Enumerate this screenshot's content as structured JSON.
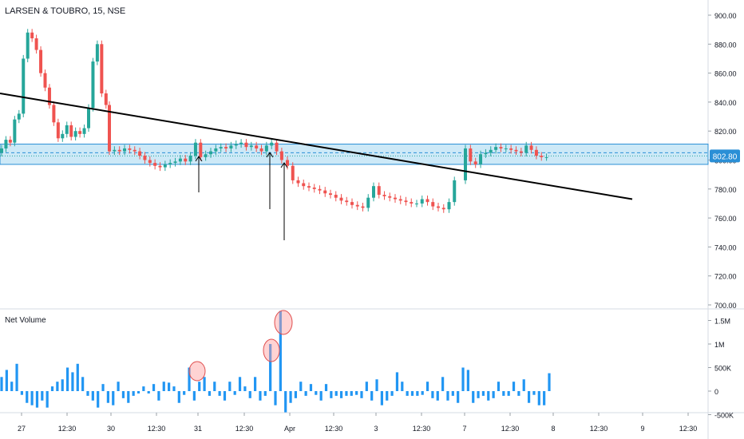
{
  "header": {
    "symbol_title": "LARSEN & TOUBRO, 15, NSE"
  },
  "price_axis": {
    "ticks": [
      "900.00",
      "880.00",
      "860.00",
      "840.00",
      "820.00",
      "800.00",
      "780.00",
      "760.00",
      "740.00",
      "720.00",
      "700.00"
    ],
    "last_price_label": "802.80"
  },
  "volume_pane": {
    "title": "Net Volume",
    "ticks": [
      "1.5M",
      "1M",
      "500K",
      "0",
      "-500K"
    ]
  },
  "time_axis": {
    "ticks": [
      "27",
      "12:30",
      "30",
      "12:30",
      "31",
      "12:30",
      "Apr",
      "12:30",
      "3",
      "12:30",
      "7",
      "12:30",
      "8",
      "12:30",
      "9",
      "12:30"
    ]
  },
  "colors": {
    "up": "#26a69a",
    "down": "#ef5350",
    "zone_fill": "#cde9f7",
    "zone_border": "#2a8fd6",
    "volume_bar": "#2196f3",
    "trendline": "#000000",
    "highlight_circle": "#ff9e9e"
  },
  "chart_data": [
    {
      "type": "candlestick",
      "title": "LARSEN & TOUBRO, 15, NSE",
      "ylim": [
        700,
        910
      ],
      "last_price": 802.8,
      "support_zone": [
        797,
        811
      ],
      "zone_midline": 805,
      "trendline": {
        "from": {
          "x": "Mar 27 start",
          "y": 846
        },
        "to": {
          "x": "Apr 8",
          "y": 773
        }
      },
      "series": [
        {
          "x": "Mar 27",
          "values": [
            808,
            814,
            812,
            828,
            832,
            870,
            888,
            884,
            876,
            860,
            850,
            838,
            826,
            815,
            818,
            824,
            816,
            820,
            818,
            822,
            836,
            868,
            880,
            846,
            838
          ]
        },
        {
          "x": "Mar 30",
          "values": [
            806,
            807,
            806,
            808,
            807,
            806,
            803,
            800,
            798,
            796,
            795,
            797,
            798,
            799,
            801,
            799,
            803,
            812,
            802,
            804,
            806,
            808,
            809,
            808,
            810,
            811,
            812,
            809,
            810,
            808,
            806,
            810,
            812,
            806,
            800
          ]
        },
        {
          "x": "Apr 1",
          "values": [
            796,
            786,
            784,
            782,
            781,
            780,
            779,
            777,
            776,
            774,
            772,
            771,
            769,
            768,
            767,
            774,
            782,
            776,
            775,
            774,
            773,
            772,
            771,
            770,
            770,
            773,
            771,
            768,
            767,
            766,
            771,
            786
          ]
        },
        {
          "x": "Apr 7",
          "values": [
            808,
            799,
            797,
            804,
            805,
            807,
            809,
            808,
            808,
            807,
            806,
            805,
            810,
            807,
            803,
            802,
            802
          ]
        }
      ]
    },
    {
      "type": "bar",
      "title": "Net Volume",
      "ylim": [
        -600000,
        1700000
      ],
      "annotations": [
        "circled spike on Mar 31",
        "circled spike on Apr 1",
        "circled spike on Apr 1"
      ],
      "values": [
        300000,
        450000,
        200000,
        580000,
        -80000,
        -250000,
        -300000,
        -350000,
        -200000,
        -350000,
        100000,
        200000,
        250000,
        500000,
        400000,
        580000,
        300000,
        -100000,
        -200000,
        -350000,
        150000,
        -250000,
        -300000,
        200000,
        -150000,
        -250000,
        -100000,
        -50000,
        100000,
        -50000,
        150000,
        -200000,
        200000,
        180000,
        100000,
        -250000,
        -80000,
        500000,
        -200000,
        200000,
        300000,
        -100000,
        200000,
        -100000,
        -200000,
        200000,
        -80000,
        300000,
        100000,
        -150000,
        300000,
        -200000,
        -100000,
        1000000,
        -300000,
        1700000,
        -450000,
        -250000,
        -150000,
        200000,
        -100000,
        150000,
        -80000,
        -200000,
        150000,
        -150000,
        -100000,
        -150000,
        -100000,
        -100000,
        -80000,
        -150000,
        200000,
        -200000,
        250000,
        -300000,
        -200000,
        -100000,
        400000,
        200000,
        -100000,
        -100000,
        -100000,
        -80000,
        200000,
        -150000,
        -200000,
        300000,
        -200000,
        -100000,
        -250000,
        500000,
        450000,
        -250000,
        -150000,
        -100000,
        -200000,
        -150000,
        200000,
        -100000,
        -100000,
        200000,
        -100000,
        250000,
        -250000,
        -80000,
        -300000,
        -300000,
        380000
      ]
    }
  ]
}
